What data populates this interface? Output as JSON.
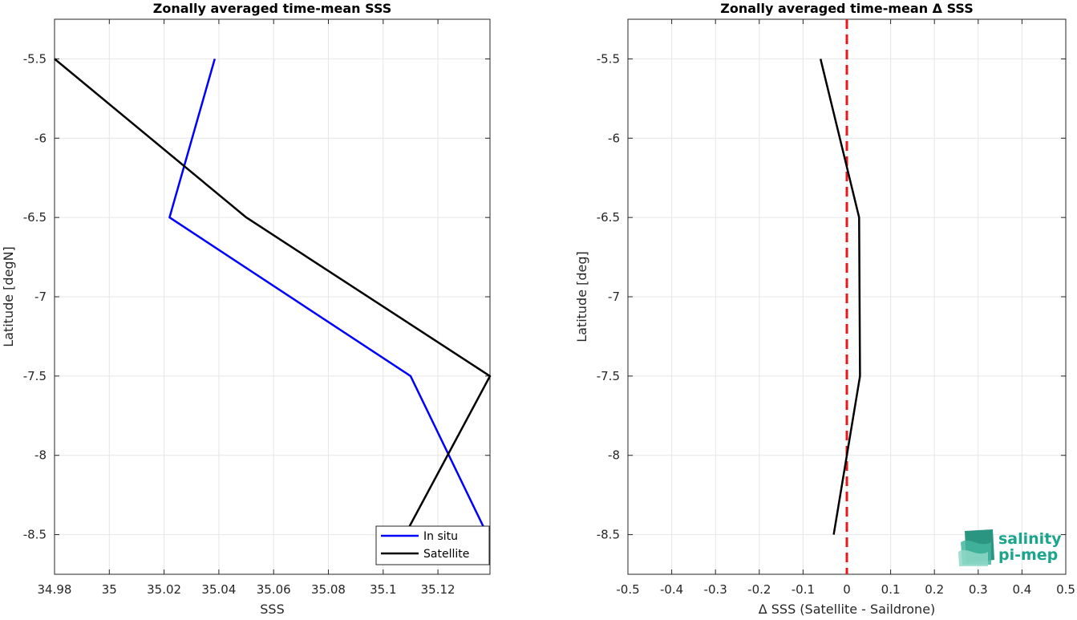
{
  "chart_data": [
    {
      "type": "line",
      "title": "Zonally averaged time-mean SSS",
      "xlabel": "SSS",
      "ylabel": "Latitude [degN]",
      "xlim": [
        34.98,
        35.139
      ],
      "ylim": [
        -8.75,
        -5.25
      ],
      "xticks": [
        "34.98",
        "35",
        "35.02",
        "35.04",
        "35.06",
        "35.08",
        "35.1",
        "35.12"
      ],
      "xtick_values": [
        34.98,
        35.0,
        35.02,
        35.04,
        35.06,
        35.08,
        35.1,
        35.12
      ],
      "yticks": [
        "-5.5",
        "-6",
        "-6.5",
        "-7",
        "-7.5",
        "-8",
        "-8.5"
      ],
      "ytick_values": [
        -5.5,
        -6.0,
        -6.5,
        -7.0,
        -7.5,
        -8.0,
        -8.5
      ],
      "grid": true,
      "legend": "bottom-right",
      "series": [
        {
          "name": "In situ",
          "color": "#0000ff",
          "points": [
            [
              35.0385,
              -5.5
            ],
            [
              35.022,
              -6.5
            ],
            [
              35.11,
              -7.5
            ],
            [
              35.138,
              -8.5
            ]
          ]
        },
        {
          "name": "Satellite",
          "color": "#000000",
          "points": [
            [
              34.98,
              -5.5
            ],
            [
              35.05,
              -6.5
            ],
            [
              35.139,
              -7.5
            ],
            [
              35.108,
              -8.5
            ]
          ]
        }
      ]
    },
    {
      "type": "line",
      "title": "Zonally averaged time-mean Δ SSS",
      "xlabel": "Δ SSS (Satellite - Saildrone)",
      "ylabel": "Latitude [deg]",
      "xlim": [
        -0.5,
        0.5
      ],
      "ylim": [
        -8.75,
        -5.25
      ],
      "xticks": [
        "-0.5",
        "-0.4",
        "-0.3",
        "-0.2",
        "-0.1",
        "0",
        "0.1",
        "0.2",
        "0.3",
        "0.4",
        "0.5"
      ],
      "xtick_values": [
        -0.5,
        -0.4,
        -0.3,
        -0.2,
        -0.1,
        0.0,
        0.1,
        0.2,
        0.3,
        0.4,
        0.5
      ],
      "yticks": [
        "-5.5",
        "-6",
        "-6.5",
        "-7",
        "-7.5",
        "-8",
        "-8.5"
      ],
      "ytick_values": [
        -5.5,
        -6.0,
        -6.5,
        -7.0,
        -7.5,
        -8.0,
        -8.5
      ],
      "grid": true,
      "reference_line": {
        "x": 0,
        "color": "#e41a1c",
        "style": "dashed"
      },
      "series": [
        {
          "color": "#000000",
          "points": [
            [
              -0.06,
              -5.5
            ],
            [
              0.028,
              -6.5
            ],
            [
              0.03,
              -7.5
            ],
            [
              -0.03,
              -8.5
            ]
          ]
        }
      ]
    }
  ],
  "logo": {
    "line1": "salinity",
    "line2": "pi-mep",
    "color": "#1aa58c"
  }
}
